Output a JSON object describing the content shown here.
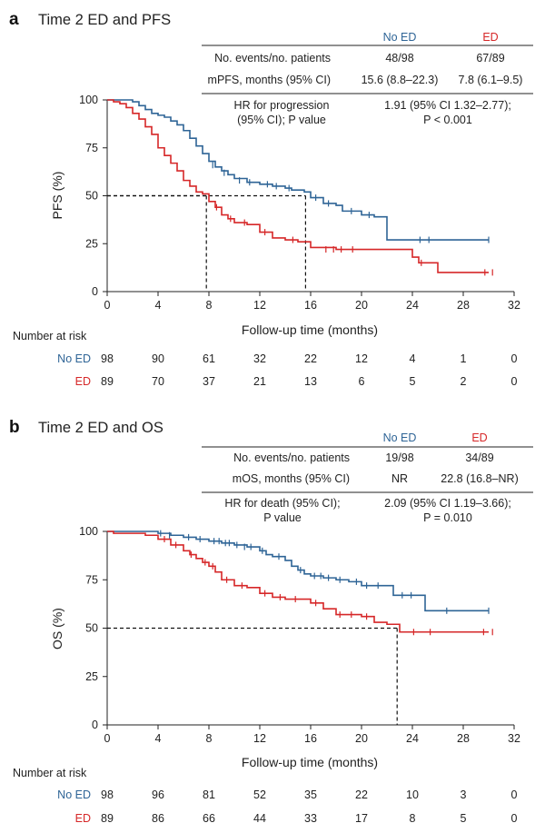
{
  "colors": {
    "no_ed": "#2e6496",
    "ed": "#d62728",
    "text": "#222222",
    "axis": "#222222"
  },
  "panels": [
    {
      "letter": "a",
      "title": "Time 2 ED and PFS",
      "table": {
        "col_no_ed": "No ED",
        "col_ed": "ED",
        "row1_label": "No. events/no. patients",
        "row1_no_ed": "48/98",
        "row1_ed": "67/89",
        "row2_label": "mPFS, months (95% CI)",
        "row2_no_ed": "15.6 (8.8–22.3)",
        "row2_ed": "7.8 (6.1–9.5)",
        "hr_label_1": "HR for progression",
        "hr_label_2": "(95% CI); P value",
        "hr_value_1": "1.91 (95% CI 1.32–2.77);",
        "hr_value_2": "P < 0.001"
      },
      "risk": {
        "header": "Number at risk",
        "no_ed_label": "No ED",
        "ed_label": "ED",
        "no_ed": [
          "98",
          "90",
          "61",
          "32",
          "22",
          "12",
          "4",
          "1",
          "0"
        ],
        "ed": [
          "89",
          "70",
          "37",
          "21",
          "13",
          "6",
          "5",
          "2",
          "0"
        ]
      }
    },
    {
      "letter": "b",
      "title": "Time 2 ED and OS",
      "table": {
        "col_no_ed": "No ED",
        "col_ed": "ED",
        "row1_label": "No. events/no. patients",
        "row1_no_ed": "19/98",
        "row1_ed": "34/89",
        "row2_label": "mOS, months (95% CI)",
        "row2_no_ed": "NR",
        "row2_ed": "22.8 (16.8–NR)",
        "hr_label_1": "HR for death (95% CI);",
        "hr_label_2": "P value",
        "hr_value_1": "2.09 (95% CI 1.19–3.66);",
        "hr_value_2": "P = 0.010"
      },
      "risk": {
        "header": "Number at risk",
        "no_ed_label": "No ED",
        "ed_label": "ED",
        "no_ed": [
          "98",
          "96",
          "81",
          "52",
          "35",
          "22",
          "10",
          "3",
          "0"
        ],
        "ed": [
          "89",
          "86",
          "66",
          "44",
          "33",
          "17",
          "8",
          "5",
          "0"
        ]
      }
    }
  ],
  "chart_data": [
    {
      "type": "line",
      "title": "Time 2 ED and PFS",
      "xlabel": "Follow-up time (months)",
      "ylabel": "PFS (%)",
      "xlim": [
        0,
        32
      ],
      "ylim": [
        0,
        100
      ],
      "xticks": [
        "0",
        "4",
        "8",
        "12",
        "16",
        "20",
        "24",
        "28",
        "32"
      ],
      "yticks": [
        "0",
        "25",
        "50",
        "75",
        "100"
      ],
      "medians": [
        7.8,
        15.6
      ],
      "series": [
        {
          "name": "No ED",
          "step": [
            [
              0,
              100
            ],
            [
              2,
              99
            ],
            [
              2.5,
              97
            ],
            [
              3,
              95
            ],
            [
              3.5,
              93
            ],
            [
              4,
              92
            ],
            [
              4.5,
              91
            ],
            [
              5,
              89
            ],
            [
              5.5,
              87
            ],
            [
              6,
              84
            ],
            [
              6.5,
              80
            ],
            [
              7,
              76
            ],
            [
              7.5,
              72
            ],
            [
              8,
              68
            ],
            [
              8.5,
              65
            ],
            [
              9,
              63
            ],
            [
              9.5,
              61
            ],
            [
              10,
              59
            ],
            [
              11,
              57
            ],
            [
              12,
              56
            ],
            [
              13,
              55
            ],
            [
              14,
              54
            ],
            [
              14.5,
              53
            ],
            [
              15.5,
              52
            ],
            [
              16,
              49
            ],
            [
              17,
              46
            ],
            [
              18,
              45
            ],
            [
              18.5,
              42
            ],
            [
              20,
              40
            ],
            [
              21,
              39
            ],
            [
              22,
              27
            ],
            [
              30,
              27
            ]
          ],
          "censors": [
            [
              8.3,
              66
            ],
            [
              9.2,
              62
            ],
            [
              10.4,
              58
            ],
            [
              11.2,
              57
            ],
            [
              12.6,
              56
            ],
            [
              13.3,
              55
            ],
            [
              14.3,
              54
            ],
            [
              16.4,
              49
            ],
            [
              17.4,
              46
            ],
            [
              19.2,
              42
            ],
            [
              20.6,
              40
            ],
            [
              24.6,
              27
            ],
            [
              25.3,
              27
            ],
            [
              30,
              27
            ]
          ]
        },
        {
          "name": "ED",
          "step": [
            [
              0,
              100
            ],
            [
              0.5,
              99
            ],
            [
              1,
              98
            ],
            [
              1.5,
              96
            ],
            [
              2,
              93
            ],
            [
              2.5,
              90
            ],
            [
              3,
              86
            ],
            [
              3.5,
              82
            ],
            [
              4,
              75
            ],
            [
              4.5,
              71
            ],
            [
              5,
              67
            ],
            [
              5.5,
              63
            ],
            [
              6,
              58
            ],
            [
              6.5,
              55
            ],
            [
              7,
              52
            ],
            [
              7.5,
              51
            ],
            [
              8,
              47
            ],
            [
              8.5,
              44
            ],
            [
              9,
              40
            ],
            [
              9.5,
              38
            ],
            [
              10,
              36
            ],
            [
              11,
              35
            ],
            [
              12,
              31
            ],
            [
              13,
              28
            ],
            [
              14,
              27
            ],
            [
              15,
              26
            ],
            [
              16,
              23
            ],
            [
              18,
              22
            ],
            [
              24,
              18
            ],
            [
              24.5,
              15
            ],
            [
              26,
              10
            ],
            [
              30,
              10
            ]
          ],
          "censors": [
            [
              8.6,
              44
            ],
            [
              9.7,
              38
            ],
            [
              10.8,
              36
            ],
            [
              12.4,
              31
            ],
            [
              14.6,
              27
            ],
            [
              17.2,
              22
            ],
            [
              17.8,
              22
            ],
            [
              18.4,
              22
            ],
            [
              19.3,
              22
            ],
            [
              24.7,
              15
            ],
            [
              29.7,
              10
            ],
            [
              30.3,
              10
            ]
          ]
        }
      ]
    },
    {
      "type": "line",
      "title": "Time 2 ED and OS",
      "xlabel": "Follow-up time (months)",
      "ylabel": "OS (%)",
      "xlim": [
        0,
        32
      ],
      "ylim": [
        0,
        100
      ],
      "xticks": [
        "0",
        "4",
        "8",
        "12",
        "16",
        "20",
        "24",
        "28",
        "32"
      ],
      "yticks": [
        "0",
        "25",
        "50",
        "75",
        "100"
      ],
      "medians": [
        22.8
      ],
      "series": [
        {
          "name": "No ED",
          "step": [
            [
              0,
              100
            ],
            [
              4,
              99
            ],
            [
              5,
              98
            ],
            [
              6,
              97
            ],
            [
              7,
              96
            ],
            [
              8,
              95
            ],
            [
              9,
              94
            ],
            [
              10,
              93
            ],
            [
              11,
              92
            ],
            [
              12,
              90
            ],
            [
              12.5,
              88
            ],
            [
              13,
              87
            ],
            [
              14,
              85
            ],
            [
              14.5,
              82
            ],
            [
              15,
              80
            ],
            [
              15.5,
              78
            ],
            [
              16,
              77
            ],
            [
              17,
              76
            ],
            [
              18,
              75
            ],
            [
              19,
              74
            ],
            [
              20,
              72
            ],
            [
              21,
              72
            ],
            [
              22,
              72
            ],
            [
              22.5,
              67
            ],
            [
              24,
              67
            ],
            [
              25,
              59
            ],
            [
              30,
              59
            ]
          ],
          "censors": [
            [
              4.2,
              99
            ],
            [
              4.9,
              98
            ],
            [
              6.4,
              97
            ],
            [
              7.3,
              96
            ],
            [
              8.4,
              95
            ],
            [
              8.8,
              95
            ],
            [
              9.3,
              94
            ],
            [
              9.6,
              94
            ],
            [
              10.2,
              93
            ],
            [
              10.8,
              92
            ],
            [
              11.3,
              92
            ],
            [
              12.2,
              90
            ],
            [
              13.5,
              87
            ],
            [
              15.2,
              80
            ],
            [
              16.3,
              77
            ],
            [
              16.8,
              77
            ],
            [
              17.4,
              76
            ],
            [
              18.3,
              75
            ],
            [
              19.6,
              74
            ],
            [
              20.4,
              72
            ],
            [
              21.3,
              72
            ],
            [
              23.2,
              67
            ],
            [
              23.9,
              67
            ],
            [
              26.7,
              59
            ],
            [
              30,
              59
            ]
          ]
        },
        {
          "name": "ED",
          "step": [
            [
              0,
              100
            ],
            [
              0.5,
              99
            ],
            [
              3,
              98
            ],
            [
              4,
              96
            ],
            [
              5,
              93
            ],
            [
              6,
              90
            ],
            [
              6.5,
              88
            ],
            [
              7,
              86
            ],
            [
              7.5,
              84
            ],
            [
              8,
              82
            ],
            [
              8.5,
              79
            ],
            [
              9,
              75
            ],
            [
              10,
              72
            ],
            [
              11,
              71
            ],
            [
              12,
              68
            ],
            [
              13,
              66
            ],
            [
              14,
              65
            ],
            [
              16,
              63
            ],
            [
              17,
              60
            ],
            [
              18,
              57
            ],
            [
              20,
              56
            ],
            [
              21,
              53
            ],
            [
              22,
              52
            ],
            [
              23,
              48
            ],
            [
              30,
              48
            ]
          ],
          "censors": [
            [
              4.5,
              96
            ],
            [
              5.4,
              93
            ],
            [
              6.6,
              88
            ],
            [
              7.7,
              84
            ],
            [
              8.3,
              82
            ],
            [
              9.4,
              75
            ],
            [
              10.6,
              72
            ],
            [
              12.4,
              68
            ],
            [
              13.6,
              66
            ],
            [
              14.8,
              65
            ],
            [
              16.4,
              63
            ],
            [
              18.3,
              57
            ],
            [
              19.2,
              57
            ],
            [
              20.4,
              56
            ],
            [
              24.1,
              48
            ],
            [
              25.4,
              48
            ],
            [
              29.6,
              48
            ],
            [
              30.3,
              48
            ]
          ]
        }
      ]
    }
  ]
}
